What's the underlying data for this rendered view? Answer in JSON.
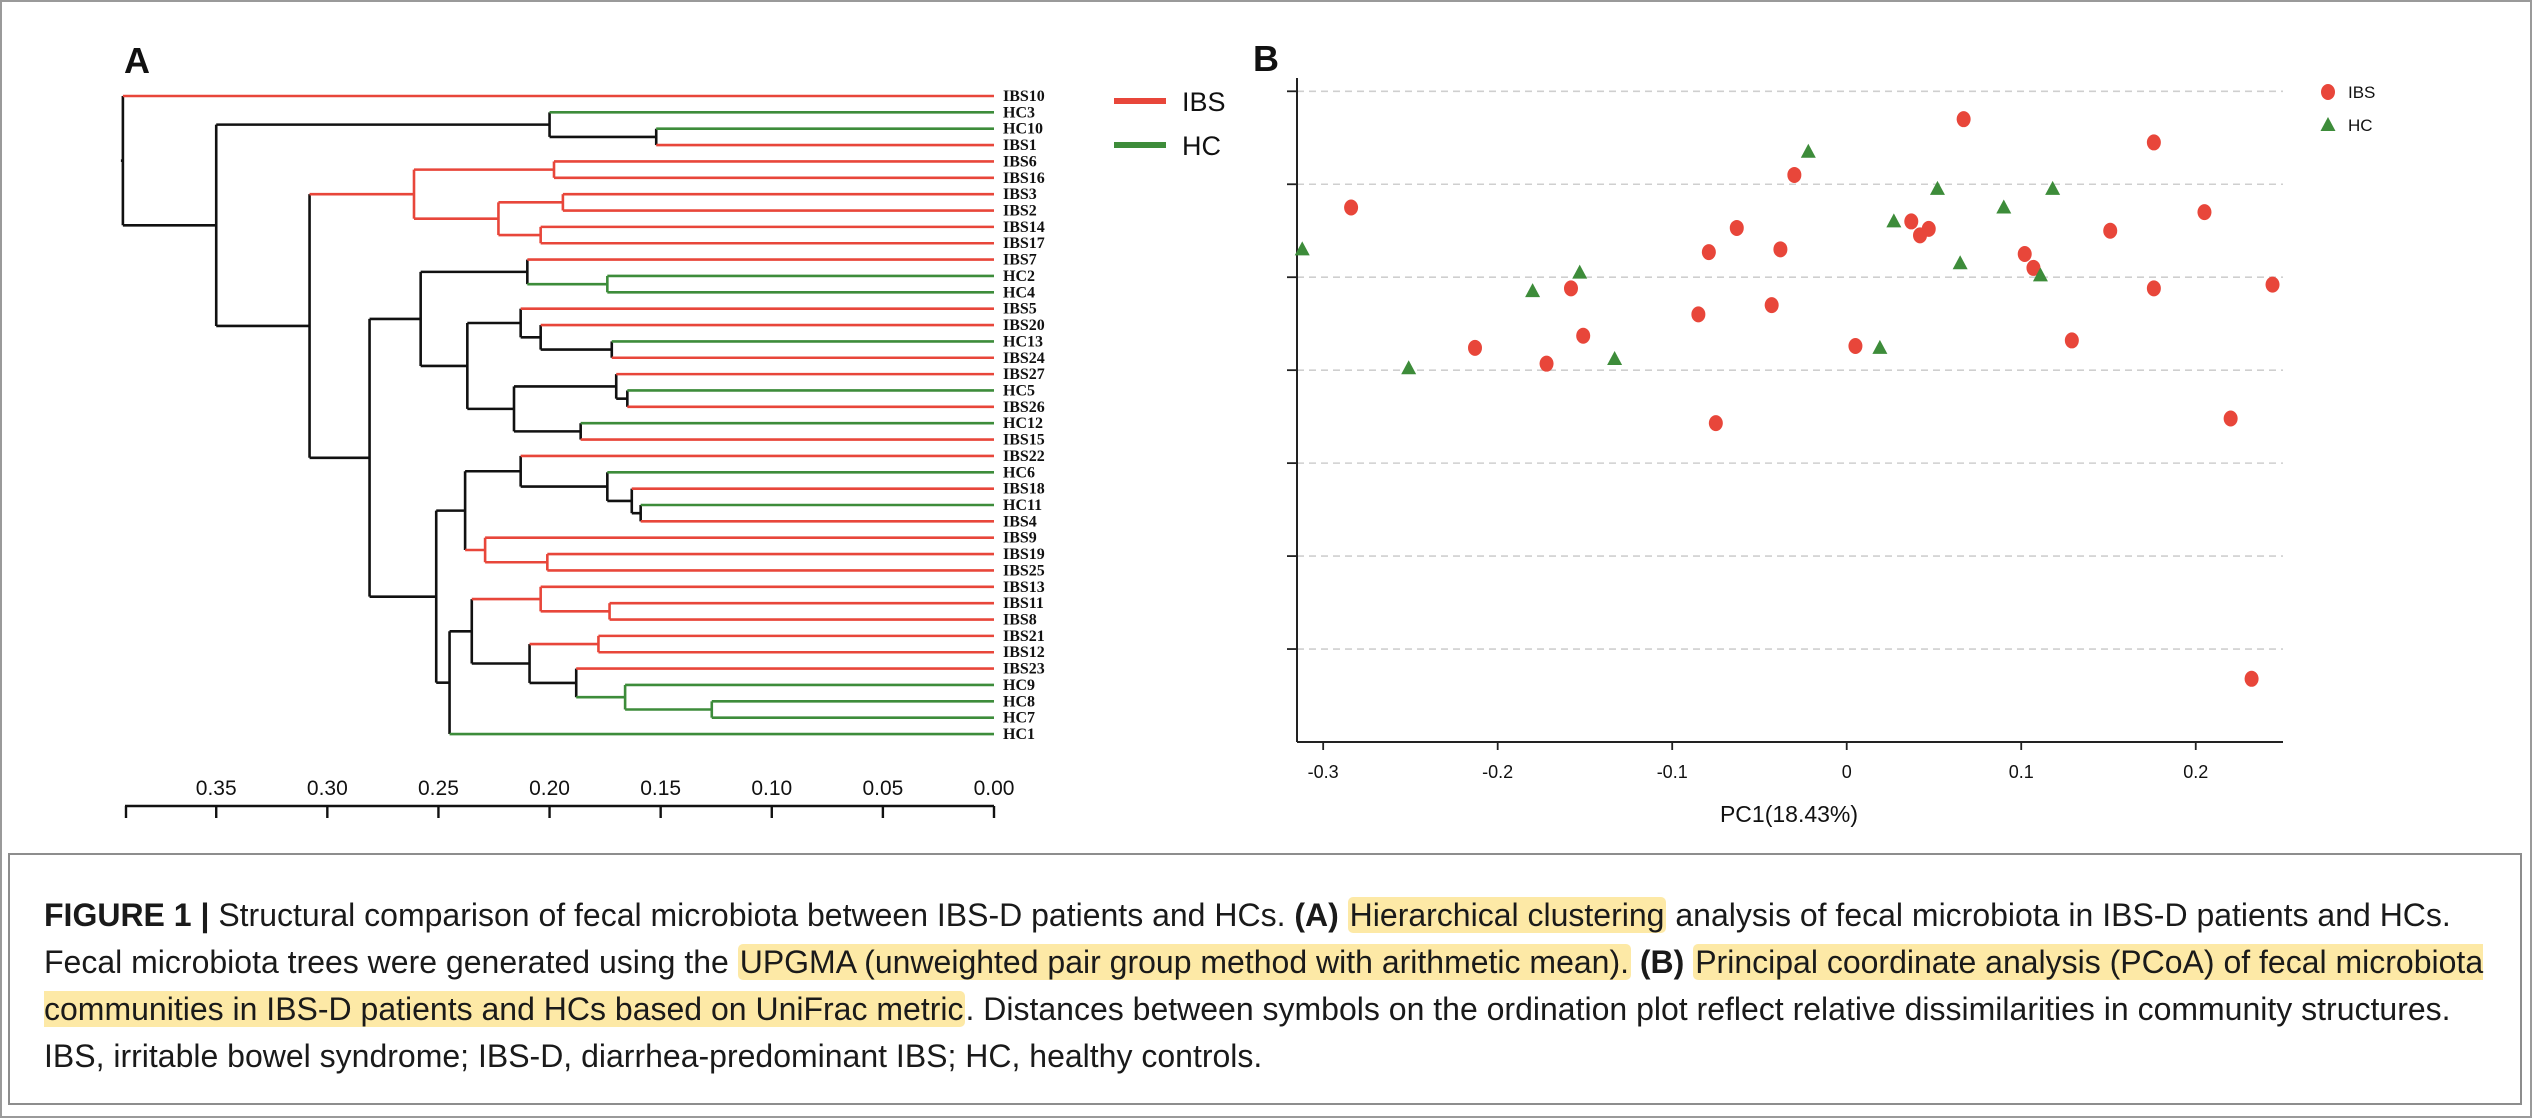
{
  "panelA": {
    "letter": "A",
    "leaves": [
      {
        "label": "IBS10",
        "group": "IBS"
      },
      {
        "label": "HC3",
        "group": "HC"
      },
      {
        "label": "HC10",
        "group": "HC"
      },
      {
        "label": "IBS1",
        "group": "IBS"
      },
      {
        "label": "IBS6",
        "group": "IBS"
      },
      {
        "label": "IBS16",
        "group": "IBS"
      },
      {
        "label": "IBS3",
        "group": "IBS"
      },
      {
        "label": "IBS2",
        "group": "IBS"
      },
      {
        "label": "IBS14",
        "group": "IBS"
      },
      {
        "label": "IBS17",
        "group": "IBS"
      },
      {
        "label": "IBS7",
        "group": "IBS"
      },
      {
        "label": "HC2",
        "group": "HC"
      },
      {
        "label": "HC4",
        "group": "HC"
      },
      {
        "label": "IBS5",
        "group": "IBS"
      },
      {
        "label": "IBS20",
        "group": "IBS"
      },
      {
        "label": "HC13",
        "group": "HC"
      },
      {
        "label": "IBS24",
        "group": "IBS"
      },
      {
        "label": "IBS27",
        "group": "IBS"
      },
      {
        "label": "HC5",
        "group": "HC"
      },
      {
        "label": "IBS26",
        "group": "IBS"
      },
      {
        "label": "HC12",
        "group": "HC"
      },
      {
        "label": "IBS15",
        "group": "IBS"
      },
      {
        "label": "IBS22",
        "group": "IBS"
      },
      {
        "label": "HC6",
        "group": "HC"
      },
      {
        "label": "IBS18",
        "group": "IBS"
      },
      {
        "label": "HC11",
        "group": "HC"
      },
      {
        "label": "IBS4",
        "group": "IBS"
      },
      {
        "label": "IBS9",
        "group": "IBS"
      },
      {
        "label": "IBS19",
        "group": "IBS"
      },
      {
        "label": "IBS25",
        "group": "IBS"
      },
      {
        "label": "IBS13",
        "group": "IBS"
      },
      {
        "label": "IBS11",
        "group": "IBS"
      },
      {
        "label": "IBS8",
        "group": "IBS"
      },
      {
        "label": "IBS21",
        "group": "IBS"
      },
      {
        "label": "IBS12",
        "group": "IBS"
      },
      {
        "label": "IBS23",
        "group": "IBS"
      },
      {
        "label": "HC9",
        "group": "HC"
      },
      {
        "label": "HC8",
        "group": "HC"
      },
      {
        "label": "HC7",
        "group": "HC"
      },
      {
        "label": "HC1",
        "group": "HC"
      }
    ],
    "tree": {
      "h": 0.392,
      "c": [
        {
          "leaf": 0
        },
        {
          "h": 0.35,
          "c": [
            {
              "h": 0.2,
              "c": [
                {
                  "leaf": 1
                },
                {
                  "h": 0.152,
                  "c": [
                    {
                      "leaf": 2
                    },
                    {
                      "leaf": 3
                    }
                  ]
                }
              ]
            },
            {
              "h": 0.308,
              "c": [
                {
                  "h": 0.261,
                  "c": [
                    {
                      "h": 0.198,
                      "c": [
                        {
                          "leaf": 4
                        },
                        {
                          "leaf": 5
                        }
                      ]
                    },
                    {
                      "h": 0.223,
                      "c": [
                        {
                          "h": 0.194,
                          "c": [
                            {
                              "leaf": 6
                            },
                            {
                              "leaf": 7
                            }
                          ]
                        },
                        {
                          "h": 0.204,
                          "c": [
                            {
                              "leaf": 8
                            },
                            {
                              "leaf": 9
                            }
                          ]
                        }
                      ]
                    }
                  ]
                },
                {
                  "h": 0.281,
                  "c": [
                    {
                      "h": 0.258,
                      "c": [
                        {
                          "h": 0.21,
                          "c": [
                            {
                              "leaf": 10
                            },
                            {
                              "h": 0.174,
                              "c": [
                                {
                                  "leaf": 11
                                },
                                {
                                  "leaf": 12
                                }
                              ]
                            }
                          ]
                        },
                        {
                          "h": 0.237,
                          "c": [
                            {
                              "h": 0.213,
                              "c": [
                                {
                                  "leaf": 13
                                },
                                {
                                  "h": 0.204,
                                  "c": [
                                    {
                                      "leaf": 14
                                    },
                                    {
                                      "h": 0.172,
                                      "c": [
                                        {
                                          "leaf": 15
                                        },
                                        {
                                          "leaf": 16
                                        }
                                      ]
                                    }
                                  ]
                                }
                              ]
                            },
                            {
                              "h": 0.216,
                              "c": [
                                {
                                  "h": 0.17,
                                  "c": [
                                    {
                                      "leaf": 17
                                    },
                                    {
                                      "h": 0.165,
                                      "c": [
                                        {
                                          "leaf": 18
                                        },
                                        {
                                          "leaf": 19
                                        }
                                      ]
                                    }
                                  ]
                                },
                                {
                                  "h": 0.186,
                                  "c": [
                                    {
                                      "leaf": 20
                                    },
                                    {
                                      "leaf": 21
                                    }
                                  ]
                                }
                              ]
                            }
                          ]
                        }
                      ]
                    },
                    {
                      "h": 0.251,
                      "c": [
                        {
                          "h": 0.238,
                          "c": [
                            {
                              "h": 0.213,
                              "c": [
                                {
                                  "leaf": 22
                                },
                                {
                                  "h": 0.174,
                                  "c": [
                                    {
                                      "leaf": 23
                                    },
                                    {
                                      "h": 0.163,
                                      "c": [
                                        {
                                          "leaf": 24
                                        },
                                        {
                                          "h": 0.159,
                                          "c": [
                                            {
                                              "leaf": 25
                                            },
                                            {
                                              "leaf": 26
                                            }
                                          ]
                                        }
                                      ]
                                    }
                                  ]
                                }
                              ]
                            },
                            {
                              "h": 0.229,
                              "c": [
                                {
                                  "leaf": 27
                                },
                                {
                                  "h": 0.201,
                                  "c": [
                                    {
                                      "leaf": 28
                                    },
                                    {
                                      "leaf": 29
                                    }
                                  ]
                                }
                              ]
                            }
                          ]
                        },
                        {
                          "h": 0.245,
                          "c": [
                            {
                              "h": 0.235,
                              "c": [
                                {
                                  "h": 0.204,
                                  "c": [
                                    {
                                      "leaf": 30
                                    },
                                    {
                                      "h": 0.173,
                                      "c": [
                                        {
                                          "leaf": 31
                                        },
                                        {
                                          "leaf": 32
                                        }
                                      ]
                                    }
                                  ]
                                },
                                {
                                  "h": 0.209,
                                  "c": [
                                    {
                                      "h": 0.178,
                                      "c": [
                                        {
                                          "leaf": 33
                                        },
                                        {
                                          "leaf": 34
                                        }
                                      ]
                                    },
                                    {
                                      "h": 0.188,
                                      "c": [
                                        {
                                          "leaf": 35
                                        },
                                        {
                                          "h": 0.166,
                                          "c": [
                                            {
                                              "leaf": 36
                                            },
                                            {
                                              "h": 0.127,
                                              "c": [
                                                {
                                                  "leaf": 37
                                                },
                                                {
                                                  "leaf": 38
                                                }
                                              ]
                                            }
                                          ]
                                        }
                                      ]
                                    }
                                  ]
                                }
                              ]
                            },
                            {
                              "leaf": 39
                            }
                          ]
                        }
                      ]
                    }
                  ]
                }
              ]
            }
          ]
        }
      ]
    },
    "axis": {
      "ticks": [
        0.35,
        0.3,
        0.25,
        0.2,
        0.15,
        0.1,
        0.05,
        0.0
      ],
      "tick_labels": [
        "0.35",
        "0.30",
        "0.25",
        "0.20",
        "0.15",
        "0.10",
        "0.05",
        "0.00"
      ]
    },
    "legend": [
      {
        "name": "IBS",
        "color": "#e8463a"
      },
      {
        "name": "HC",
        "color": "#3d8c3a"
      }
    ]
  },
  "panelB": {
    "letter": "B",
    "xlabel": "PC1(18.43%)",
    "xticks": [
      -0.3,
      -0.2,
      -0.1,
      0,
      0.1,
      0.2
    ],
    "xtick_labels": [
      "-0.3",
      "-0.2",
      "-0.1",
      "0",
      "0.1",
      "0.2"
    ],
    "legend": [
      {
        "name": "IBS",
        "shape": "circle",
        "color": "#e8463a"
      },
      {
        "name": "HC",
        "shape": "triangle",
        "color": "#3d8c3a"
      }
    ]
  },
  "chart_data": {
    "type": "scatter",
    "xlabel": "PC1(18.43%)",
    "ylabel": "",
    "xlim": [
      -0.315,
      0.25
    ],
    "ylim": [
      0,
      7.1
    ],
    "grid": true,
    "legend_position": "top-right",
    "series": [
      {
        "name": "IBS",
        "marker": "circle",
        "color": "#e8463a",
        "points": [
          [
            0.067,
            6.7
          ],
          [
            0.176,
            6.45
          ],
          [
            -0.03,
            6.1
          ],
          [
            -0.284,
            5.75
          ],
          [
            0.205,
            5.7
          ],
          [
            0.037,
            5.6
          ],
          [
            0.047,
            5.52
          ],
          [
            0.042,
            5.45
          ],
          [
            -0.063,
            5.53
          ],
          [
            0.151,
            5.5
          ],
          [
            -0.038,
            5.3
          ],
          [
            -0.079,
            5.27
          ],
          [
            0.102,
            5.25
          ],
          [
            0.107,
            5.1
          ],
          [
            -0.158,
            4.88
          ],
          [
            0.176,
            4.88
          ],
          [
            0.244,
            4.92
          ],
          [
            -0.043,
            4.7
          ],
          [
            -0.085,
            4.6
          ],
          [
            -0.151,
            4.37
          ],
          [
            0.129,
            4.32
          ],
          [
            -0.213,
            4.24
          ],
          [
            0.005,
            4.26
          ],
          [
            -0.172,
            4.07
          ],
          [
            -0.075,
            3.43
          ],
          [
            0.22,
            3.48
          ],
          [
            0.232,
            0.68
          ]
        ]
      },
      {
        "name": "HC",
        "marker": "triangle",
        "color": "#3d8c3a",
        "points": [
          [
            -0.022,
            6.35
          ],
          [
            -0.312,
            5.3
          ],
          [
            0.052,
            5.95
          ],
          [
            0.09,
            5.75
          ],
          [
            0.118,
            5.95
          ],
          [
            0.027,
            5.6
          ],
          [
            0.065,
            5.15
          ],
          [
            -0.153,
            5.05
          ],
          [
            0.111,
            5.02
          ],
          [
            -0.18,
            4.85
          ],
          [
            -0.133,
            4.12
          ],
          [
            0.019,
            4.24
          ],
          [
            -0.251,
            4.02
          ]
        ]
      }
    ]
  },
  "caption": {
    "fig_label": "FIGURE 1 |",
    "s1": " Structural comparison of fecal microbiota between IBS-D patients and HCs. ",
    "a_tag": "(A)",
    "hl1": "Hierarchical clustering",
    "s2": " analysis of fecal microbiota in IBS-D patients and HCs. Fecal microbiota trees were generated using the ",
    "hl2": "UPGMA (unweighted pair group method with arithmetic mean).",
    "b_tag": "(B)",
    "hl3": "Principal coordinate analysis (PCoA) of fecal microbiota communities in IBS-D patients and HCs based on UniFrac metric",
    "s3": ". Distances between symbols on the ordination plot reflect relative dissimilarities in community structures. IBS, irritable bowel syndrome; IBS-D, diarrhea-predominant IBS; HC, healthy controls."
  }
}
